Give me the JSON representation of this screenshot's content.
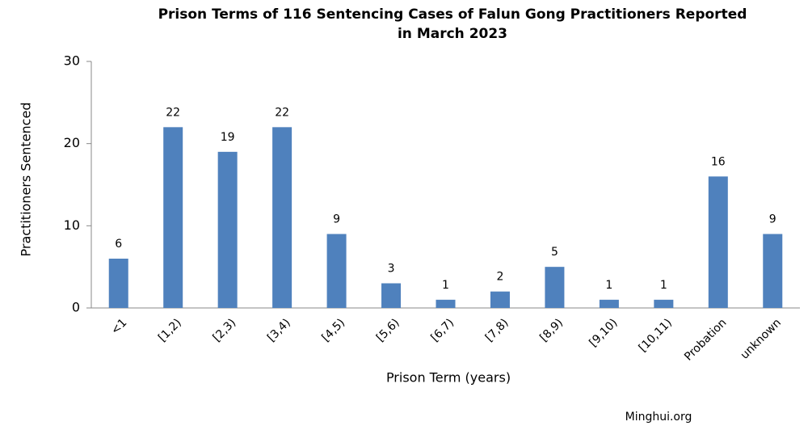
{
  "chart_data": {
    "type": "bar",
    "title": [
      "Prison Terms of 116 Sentencing Cases of Falun Gong Practitioners Reported",
      "in March 2023"
    ],
    "categories": [
      "<1",
      "[1,2)",
      "[2,3)",
      "[3,4)",
      "[4,5)",
      "[5,6)",
      "[6,7)",
      "[7,8)",
      "[8,9)",
      "[9,10)",
      "[10,11)",
      "Probation",
      "unknown"
    ],
    "values": [
      6,
      22,
      19,
      22,
      9,
      3,
      1,
      2,
      5,
      1,
      1,
      16,
      9
    ],
    "color": "#4f81bd",
    "ylim": [
      0,
      30
    ],
    "yticks": [
      0,
      10,
      20,
      30
    ],
    "grid": false,
    "x_label": "Prison Term (years)",
    "y_label": "Practitioners Sentenced",
    "source": "Minghui.org"
  }
}
